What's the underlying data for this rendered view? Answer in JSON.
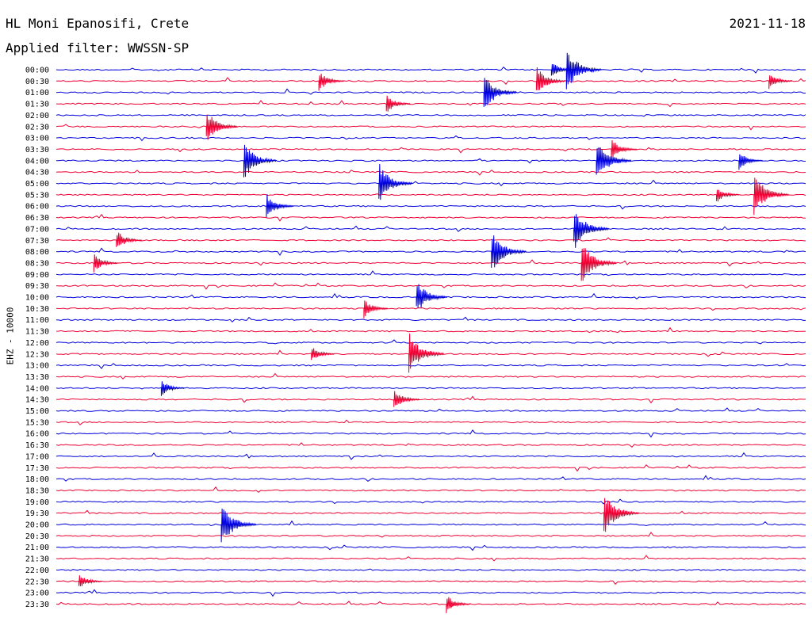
{
  "header": {
    "station": "HL Moni Epanosifi, Crete",
    "date": "2021-11-18",
    "filter": "Applied filter: WWSSN-SP"
  },
  "channel_label": "EHZ - 10000",
  "colors": {
    "blue": "#0000dd",
    "red": "#ee0033"
  },
  "chart_data": {
    "type": "line",
    "title": "HL Moni Epanosifi, Crete",
    "ylabel": "EHZ - 10000",
    "row_labels": [
      "00:00",
      "00:30",
      "01:00",
      "01:30",
      "02:00",
      "02:30",
      "03:00",
      "03:30",
      "04:00",
      "04:30",
      "05:00",
      "05:30",
      "06:00",
      "06:30",
      "07:00",
      "07:30",
      "08:00",
      "08:30",
      "09:00",
      "09:30",
      "10:00",
      "10:30",
      "11:00",
      "11:30",
      "12:00",
      "12:30",
      "13:00",
      "13:30",
      "14:00",
      "14:30",
      "15:00",
      "15:30",
      "16:00",
      "16:30",
      "17:00",
      "17:30",
      "18:00",
      "18:30",
      "19:00",
      "19:30",
      "20:00",
      "20:30",
      "21:00",
      "21:30",
      "22:00",
      "22:30",
      "23:00",
      "23:30"
    ],
    "row_colors": [
      "blue",
      "red"
    ],
    "grid": false,
    "legend": "none",
    "events": [
      {
        "row": 0,
        "frac": 0.66,
        "amp": 0.8
      },
      {
        "row": 0,
        "frac": 0.68,
        "amp": 2.0
      },
      {
        "row": 1,
        "frac": 0.35,
        "amp": 1.0
      },
      {
        "row": 1,
        "frac": 0.64,
        "amp": 1.4
      },
      {
        "row": 1,
        "frac": 0.95,
        "amp": 0.8
      },
      {
        "row": 2,
        "frac": 0.57,
        "amp": 1.8
      },
      {
        "row": 3,
        "frac": 0.44,
        "amp": 0.9
      },
      {
        "row": 5,
        "frac": 0.2,
        "amp": 1.6
      },
      {
        "row": 7,
        "frac": 0.74,
        "amp": 1.0
      },
      {
        "row": 8,
        "frac": 0.25,
        "amp": 1.8
      },
      {
        "row": 8,
        "frac": 0.72,
        "amp": 2.0
      },
      {
        "row": 8,
        "frac": 0.91,
        "amp": 0.9
      },
      {
        "row": 10,
        "frac": 0.43,
        "amp": 1.9
      },
      {
        "row": 11,
        "frac": 0.88,
        "amp": 0.8
      },
      {
        "row": 11,
        "frac": 0.93,
        "amp": 2.0
      },
      {
        "row": 12,
        "frac": 0.28,
        "amp": 1.2
      },
      {
        "row": 14,
        "frac": 0.69,
        "amp": 2.0
      },
      {
        "row": 15,
        "frac": 0.08,
        "amp": 1.0
      },
      {
        "row": 16,
        "frac": 0.58,
        "amp": 2.0
      },
      {
        "row": 17,
        "frac": 0.05,
        "amp": 0.9
      },
      {
        "row": 17,
        "frac": 0.7,
        "amp": 2.0
      },
      {
        "row": 20,
        "frac": 0.48,
        "amp": 1.6
      },
      {
        "row": 21,
        "frac": 0.41,
        "amp": 0.9
      },
      {
        "row": 25,
        "frac": 0.47,
        "amp": 2.0
      },
      {
        "row": 25,
        "frac": 0.34,
        "amp": 0.8
      },
      {
        "row": 28,
        "frac": 0.14,
        "amp": 0.8
      },
      {
        "row": 29,
        "frac": 0.45,
        "amp": 1.0
      },
      {
        "row": 39,
        "frac": 0.73,
        "amp": 2.0
      },
      {
        "row": 40,
        "frac": 0.22,
        "amp": 2.0
      },
      {
        "row": 45,
        "frac": 0.03,
        "amp": 0.8
      },
      {
        "row": 47,
        "frac": 0.52,
        "amp": 0.9
      }
    ]
  }
}
